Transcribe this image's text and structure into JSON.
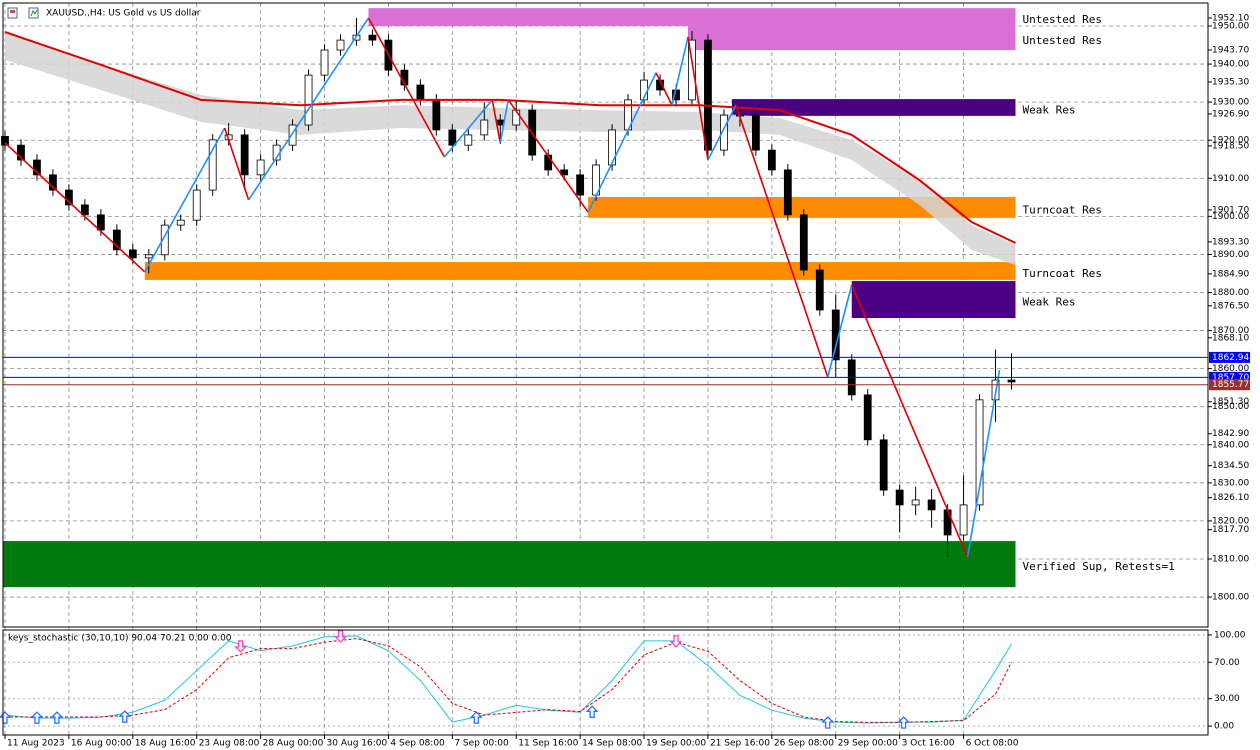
{
  "chart_data": [
    {
      "type": "candlestick",
      "title": "XAUUSD.,H4: US Gold vs US dollar",
      "xlim": [
        0,
        301.2
      ],
      "xticks": [
        {
          "value": 0,
          "label": "11 Aug 2023"
        },
        {
          "value": 16,
          "label": "16 Aug 00:00"
        },
        {
          "value": 32,
          "label": "18 Aug 16:00"
        },
        {
          "value": 48,
          "label": "23 Aug 08:00"
        },
        {
          "value": 64,
          "label": "28 Aug 00:00"
        },
        {
          "value": 80,
          "label": "30 Aug 16:00"
        },
        {
          "value": 96,
          "label": "4 Sep 08:00"
        },
        {
          "value": 112,
          "label": "7 Sep 00:00"
        },
        {
          "value": 128,
          "label": "11 Sep 16:00"
        },
        {
          "value": 144,
          "label": "14 Sep 08:00"
        },
        {
          "value": 160,
          "label": "19 Sep 00:00"
        },
        {
          "value": 176,
          "label": "21 Sep 16:00"
        },
        {
          "value": 192,
          "label": "26 Sep 08:00"
        },
        {
          "value": 208,
          "label": "29 Sep 00:00"
        },
        {
          "value": 224,
          "label": "3 Oct 16:00"
        },
        {
          "value": 240,
          "label": "6 Oct 08:00"
        }
      ],
      "ylim": [
        1792.13,
        1955.52
      ],
      "yticks": [
        {
          "value": 1950,
          "label": "1950.00"
        },
        {
          "value": 1940,
          "label": "1940.00"
        },
        {
          "value": 1930,
          "label": "1930.00"
        },
        {
          "value": 1920,
          "label": "1920.00"
        },
        {
          "value": 1910,
          "label": "1910.00"
        },
        {
          "value": 1900,
          "label": "1900.00"
        },
        {
          "value": 1890,
          "label": "1890.00"
        },
        {
          "value": 1880,
          "label": "1880.00"
        },
        {
          "value": 1870,
          "label": "1870.00"
        },
        {
          "value": 1860,
          "label": "1860.00"
        },
        {
          "value": 1850,
          "label": "1850.00"
        },
        {
          "value": 1840,
          "label": "1840.00"
        },
        {
          "value": 1830,
          "label": "1830.00"
        },
        {
          "value": 1820,
          "label": "1820.00"
        },
        {
          "value": 1810,
          "label": "1810.00"
        },
        {
          "value": 1800,
          "label": "1800.00"
        }
      ],
      "ylevels": [
        {
          "value": 1952.1,
          "label": "1952.10"
        },
        {
          "value": 1943.7,
          "label": "1943.70"
        },
        {
          "value": 1935.3,
          "label": "1935.30"
        },
        {
          "value": 1926.9,
          "label": "1926.90"
        },
        {
          "value": 1918.5,
          "label": "1918.50"
        },
        {
          "value": 1901.7,
          "label": "1901.70"
        },
        {
          "value": 1893.3,
          "label": "1893.30"
        },
        {
          "value": 1884.9,
          "label": "1884.90"
        },
        {
          "value": 1876.5,
          "label": "1876.50"
        },
        {
          "value": 1868.1,
          "label": "1868.10"
        },
        {
          "value": 1851.3,
          "label": "1851.30"
        },
        {
          "value": 1842.9,
          "label": "1842.90"
        },
        {
          "value": 1834.5,
          "label": "1834.50"
        },
        {
          "value": 1826.1,
          "label": "1826.10"
        },
        {
          "value": 1817.7,
          "label": "1817.70"
        }
      ],
      "price_lines": [
        {
          "value": 1862.94,
          "label": "1862.94",
          "color": "#0000ff"
        },
        {
          "value": 1857.7,
          "label": "1857.70",
          "color": "#0000ff"
        },
        {
          "value": 1855.77,
          "label": "1855.77",
          "color": "#a52a2a"
        }
      ],
      "zones": [
        {
          "label": "Untested Res",
          "color": "#da70d6",
          "x": [
            91,
            253
          ],
          "range": [
            1950.0,
            1954.7
          ]
        },
        {
          "label": "Untested Res",
          "color": "#da70d6",
          "x": [
            171,
            253
          ],
          "range": [
            1943.7,
            1950.0
          ]
        },
        {
          "label": "Weak Res",
          "color": "#4b0082",
          "x": [
            182,
            253
          ],
          "range": [
            1926.4,
            1930.8
          ]
        },
        {
          "label": "Turncoat Res",
          "color": "#ff8c00",
          "x": [
            146,
            253
          ],
          "range": [
            1899.6,
            1905.1
          ]
        },
        {
          "label": "Turncoat Res",
          "color": "#ff8c00",
          "x": [
            35,
            253
          ],
          "range": [
            1883.3,
            1888.0
          ]
        },
        {
          "label": "Weak Res",
          "color": "#4b0082",
          "x": [
            212,
            253
          ],
          "range": [
            1873.3,
            1883.0
          ]
        },
        {
          "label": "Verified Sup, Retests=1",
          "color": "#007a0c",
          "x": [
            -0.5,
            253
          ],
          "range": [
            1802.6,
            1814.7
          ]
        }
      ],
      "band": {
        "color": "#d3d3d3",
        "x": [
          0,
          24,
          49,
          74,
          99,
          124,
          149,
          174,
          194,
          212,
          229,
          242,
          253
        ],
        "upper": [
          1948.9,
          1939.8,
          1931.9,
          1927.9,
          1929.2,
          1928.5,
          1927.9,
          1927.4,
          1925.8,
          1920.1,
          1909.5,
          1897.7,
          1892.5
        ],
        "lower": [
          1941.1,
          1933.2,
          1924.8,
          1921.4,
          1923.2,
          1922.7,
          1922.2,
          1922.7,
          1921.4,
          1914.8,
          1903.0,
          1891.2,
          1887.2
        ]
      },
      "moving_average": {
        "color": "#e00000",
        "x": [
          0,
          24,
          49,
          74,
          99,
          124,
          149,
          174,
          194,
          212,
          229,
          242,
          253
        ],
        "values": [
          1948.4,
          1939.8,
          1930.6,
          1929.2,
          1930.6,
          1930.6,
          1929.2,
          1929.2,
          1927.9,
          1921.4,
          1909.5,
          1898.5,
          1893.0
        ]
      },
      "zigzag": {
        "up_color": "#1e90ff",
        "down_color": "#e00000",
        "x": [
          0,
          35,
          55,
          61,
          91,
          110,
          122,
          124,
          126,
          146,
          163,
          167,
          171,
          176,
          183,
          206,
          212,
          241,
          249
        ],
        "values": [
          1919.3,
          1885.4,
          1923.2,
          1904.3,
          1952.1,
          1915.6,
          1930.6,
          1919.3,
          1930.6,
          1901.1,
          1937.7,
          1929.2,
          1947.1,
          1914.8,
          1929.2,
          1857.8,
          1882.0,
          1810.5,
          1859.6
        ]
      },
      "candles": {
        "up_color": "#ffffff",
        "down_color": "#000000",
        "x": [
          0,
          4,
          8,
          12,
          16,
          20,
          24,
          28,
          32,
          36,
          40,
          44,
          48,
          52,
          56,
          60,
          64,
          68,
          72,
          76,
          80,
          84,
          88,
          92,
          96,
          100,
          104,
          108,
          112,
          116,
          120,
          124,
          128,
          132,
          136,
          140,
          144,
          148,
          152,
          156,
          160,
          164,
          168,
          172,
          176,
          180,
          184,
          188,
          192,
          196,
          200,
          204,
          208,
          212,
          216,
          220,
          224,
          228,
          232,
          236,
          240,
          244,
          248,
          252
        ],
        "open": [
          1921.0,
          1918.7,
          1914.8,
          1910.9,
          1906.9,
          1903.0,
          1900.4,
          1896.4,
          1891.2,
          1889.1,
          1889.9,
          1897.7,
          1899.0,
          1906.9,
          1920.1,
          1921.4,
          1910.9,
          1914.8,
          1918.7,
          1924.0,
          1937.1,
          1943.7,
          1946.3,
          1947.6,
          1946.3,
          1938.4,
          1934.5,
          1930.6,
          1922.7,
          1918.7,
          1921.4,
          1925.3,
          1924.0,
          1927.9,
          1916.1,
          1912.2,
          1910.9,
          1905.6,
          1913.5,
          1922.7,
          1930.6,
          1935.8,
          1933.2,
          1930.6,
          1946.3,
          1917.4,
          1926.6,
          1926.6,
          1917.4,
          1912.2,
          1900.4,
          1885.9,
          1875.4,
          1862.3,
          1853.1,
          1841.3,
          1828.1,
          1824.2,
          1825.5,
          1822.9,
          1816.3,
          1824.2,
          1851.8,
          1857.0
        ],
        "high": [
          1922.5,
          1920.2,
          1916.3,
          1912.4,
          1908.4,
          1904.5,
          1901.9,
          1897.9,
          1892.7,
          1891.4,
          1899.2,
          1900.5,
          1908.4,
          1921.6,
          1924.5,
          1922.9,
          1916.3,
          1920.2,
          1925.5,
          1938.6,
          1945.2,
          1947.8,
          1952.1,
          1949.1,
          1947.8,
          1939.9,
          1936.0,
          1932.1,
          1924.2,
          1922.9,
          1930.0,
          1926.8,
          1930.2,
          1929.4,
          1917.6,
          1913.7,
          1912.4,
          1915.0,
          1924.2,
          1932.1,
          1938.0,
          1937.3,
          1934.7,
          1948.7,
          1947.8,
          1928.1,
          1929.6,
          1928.1,
          1918.9,
          1913.7,
          1901.9,
          1887.4,
          1879.5,
          1863.8,
          1854.6,
          1842.8,
          1829.6,
          1829.0,
          1828.4,
          1824.4,
          1832.0,
          1853.3,
          1865.0,
          1864.0
        ],
        "low": [
          1917.2,
          1913.3,
          1909.4,
          1905.4,
          1901.5,
          1898.9,
          1894.9,
          1889.7,
          1887.6,
          1885.0,
          1888.4,
          1896.2,
          1897.5,
          1905.4,
          1918.6,
          1907.0,
          1909.4,
          1913.3,
          1917.2,
          1922.5,
          1935.6,
          1942.2,
          1944.8,
          1944.8,
          1936.9,
          1933.0,
          1929.1,
          1921.2,
          1917.0,
          1917.2,
          1919.9,
          1919.0,
          1922.5,
          1914.6,
          1910.7,
          1909.4,
          1902.6,
          1904.1,
          1912.0,
          1921.2,
          1929.1,
          1931.7,
          1928.8,
          1929.1,
          1914.8,
          1915.9,
          1923.6,
          1915.9,
          1910.7,
          1898.9,
          1884.4,
          1873.9,
          1857.8,
          1851.6,
          1839.8,
          1826.6,
          1817.0,
          1821.5,
          1818.2,
          1810.5,
          1814.8,
          1822.7,
          1846.0,
          1854.5
        ],
        "close": [
          1918.7,
          1914.8,
          1910.9,
          1906.9,
          1903.0,
          1900.4,
          1896.4,
          1891.2,
          1889.1,
          1889.9,
          1897.7,
          1899.0,
          1906.9,
          1920.1,
          1921.4,
          1910.9,
          1914.8,
          1918.7,
          1924.0,
          1937.1,
          1943.7,
          1946.3,
          1947.6,
          1946.3,
          1938.4,
          1934.5,
          1930.6,
          1922.7,
          1918.7,
          1921.4,
          1925.3,
          1924.0,
          1927.9,
          1916.1,
          1912.2,
          1910.9,
          1905.6,
          1913.5,
          1922.7,
          1930.6,
          1935.8,
          1933.2,
          1930.6,
          1946.3,
          1917.4,
          1926.6,
          1926.6,
          1917.4,
          1912.2,
          1900.4,
          1885.9,
          1875.4,
          1862.3,
          1853.1,
          1841.3,
          1828.1,
          1824.2,
          1825.5,
          1822.9,
          1816.3,
          1824.2,
          1851.8,
          1857.0,
          1856.5
        ]
      }
    },
    {
      "type": "line",
      "title": "keys_stochastic (30,10,10) 90.04 70.21 0.00 0.00",
      "xlim": [
        0,
        301.2
      ],
      "ylim": [
        -9.8,
        105.4
      ],
      "yticks": [
        {
          "value": 100,
          "label": "100.00"
        },
        {
          "value": 70,
          "label": "70.00"
        },
        {
          "value": 30,
          "label": "30.00"
        },
        {
          "value": 0,
          "label": "0.00"
        }
      ],
      "x": [
        0,
        8,
        16,
        24,
        32,
        40,
        48,
        56,
        64,
        72,
        80,
        88,
        96,
        104,
        112,
        120,
        128,
        136,
        144,
        152,
        160,
        168,
        176,
        184,
        192,
        200,
        208,
        216,
        224,
        232,
        240,
        248,
        252
      ],
      "series": [
        {
          "color": "#1ec8e8",
          "dashed": false,
          "values": [
            12.0,
            8.7,
            8.7,
            9.8,
            15.2,
            28.3,
            60.9,
            93.5,
            82.6,
            88.0,
            97.8,
            98.9,
            82.6,
            50.0,
            4.3,
            12.0,
            22.8,
            17.4,
            15.2,
            50.0,
            93.5,
            93.5,
            66.3,
            33.7,
            17.4,
            8.7,
            4.3,
            3.3,
            4.3,
            4.3,
            6.5,
            60.9,
            90.04
          ]
        },
        {
          "color": "#e00000",
          "dashed": true,
          "values": [
            10,
            10,
            10,
            10,
            12,
            18,
            40,
            75,
            85,
            85,
            92,
            96,
            88,
            65,
            25,
            12,
            15,
            18,
            16,
            40,
            78,
            92,
            82,
            50,
            25,
            10,
            5,
            4,
            4,
            5,
            6,
            35,
            70.21
          ]
        }
      ],
      "up_arrows": {
        "color": "#1e64ff",
        "x": [
          0,
          8,
          13,
          30,
          118,
          147,
          206,
          225
        ],
        "values": [
          8.7,
          8.7,
          8.7,
          9.8,
          8.7,
          15.2,
          3.3,
          3.3
        ]
      },
      "down_arrows": {
        "color": "#ff3cc8",
        "x": [
          59,
          84,
          168
        ],
        "values": [
          88.0,
          98.9,
          93.5
        ]
      }
    }
  ]
}
